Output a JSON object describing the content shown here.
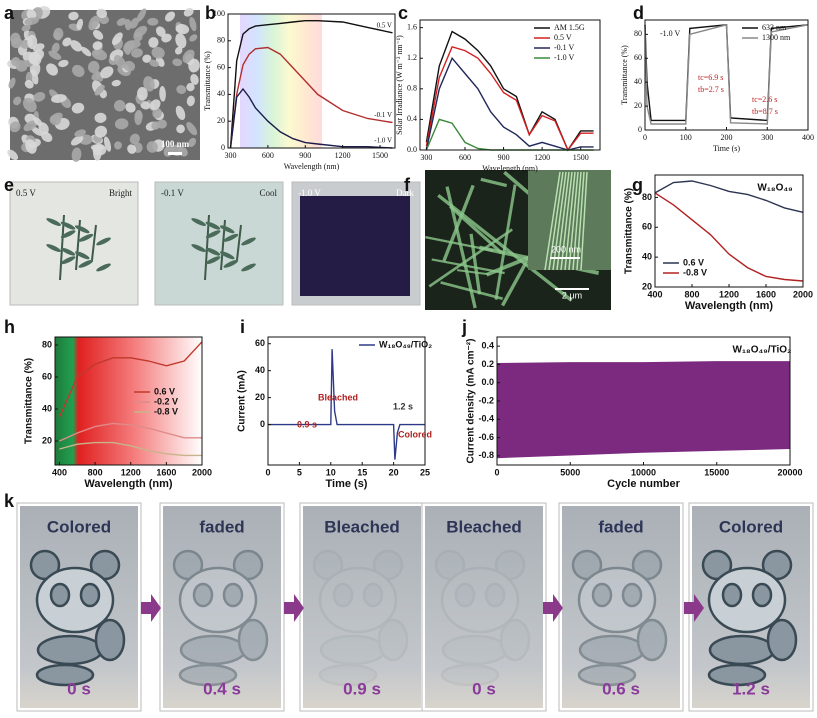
{
  "chart_data": [
    {
      "type": "line",
      "panel": "b",
      "xlabel": "Wavelength (nm)",
      "ylabel": "Transmittance (%)",
      "x": [
        300,
        350,
        400,
        450,
        500,
        600,
        700,
        800,
        900,
        1000,
        1200,
        1400,
        1600
      ],
      "series": [
        {
          "name": "0.5 V",
          "color": "#111111",
          "values": [
            0,
            65,
            85,
            89,
            91,
            92,
            93,
            94,
            95,
            95,
            94,
            90,
            86
          ]
        },
        {
          "name": "-0.1 V",
          "color": "#b03030",
          "values": [
            0,
            40,
            62,
            70,
            74,
            75,
            70,
            60,
            50,
            40,
            28,
            22,
            19
          ]
        },
        {
          "name": "-1.0 V",
          "color": "#1c1c4a",
          "values": [
            0,
            38,
            44,
            38,
            30,
            20,
            12,
            7,
            4,
            3,
            1,
            1,
            0
          ]
        }
      ],
      "xlim": [
        280,
        1620
      ],
      "ylim": [
        0,
        100
      ],
      "xticks": [
        300,
        600,
        900,
        1200,
        1500
      ],
      "yticks": [
        0,
        20,
        40,
        60,
        80,
        100
      ],
      "legend": "inline"
    },
    {
      "type": "line",
      "panel": "c",
      "xlabel": "Wavelength (nm)",
      "ylabel": "Solar Irradiance (W m⁻² nm⁻¹)",
      "x": [
        300,
        400,
        500,
        600,
        700,
        800,
        900,
        1000,
        1100,
        1200,
        1300,
        1400,
        1500,
        1600
      ],
      "series": [
        {
          "name": "AM 1.5G",
          "color": "#111111",
          "values": [
            0.1,
            1.1,
            1.55,
            1.45,
            1.3,
            1.1,
            0.8,
            0.7,
            0.2,
            0.5,
            0.4,
            0.0,
            0.25,
            0.25
          ]
        },
        {
          "name": "0.5 V",
          "color": "#d42020",
          "values": [
            0.05,
            0.95,
            1.35,
            1.3,
            1.2,
            1.0,
            0.75,
            0.65,
            0.2,
            0.45,
            0.38,
            0.0,
            0.22,
            0.22
          ]
        },
        {
          "name": "-0.1 V",
          "color": "#22285a",
          "values": [
            0,
            0.8,
            1.2,
            1.0,
            0.8,
            0.5,
            0.3,
            0.2,
            0.05,
            0.1,
            0.05,
            0,
            0.04,
            0.04
          ]
        },
        {
          "name": "-1.0 V",
          "color": "#3a8a3a",
          "values": [
            0,
            0.4,
            0.35,
            0.1,
            0.02,
            0,
            0,
            0,
            0,
            0,
            0,
            0,
            0,
            0
          ]
        }
      ],
      "xlim": [
        250,
        1650
      ],
      "ylim": [
        0,
        1.7
      ],
      "xticks": [
        300,
        600,
        900,
        1200,
        1500
      ],
      "yticks": [
        {
          "value": 0,
          "label": "0.0"
        },
        0.4,
        0.8,
        1.2,
        1.6
      ],
      "legend": "upper right"
    },
    {
      "type": "line",
      "panel": "d",
      "xlabel": "Time (s)",
      "ylabel": "Transmittance (%)",
      "x": [
        0,
        5,
        15,
        100,
        110,
        200,
        210,
        300,
        310,
        400
      ],
      "series": [
        {
          "name": "633 nm",
          "color": "#111111",
          "values": [
            88,
            40,
            8,
            8,
            85,
            88,
            10,
            8,
            85,
            88
          ]
        },
        {
          "name": "1300 nm",
          "color": "#888888",
          "values": [
            88,
            20,
            5,
            5,
            80,
            88,
            6,
            5,
            82,
            88
          ]
        }
      ],
      "xlim": [
        0,
        400
      ],
      "ylim": [
        0,
        92
      ],
      "xticks": [
        0,
        100,
        200,
        300,
        400
      ],
      "yticks": [
        0,
        20,
        40,
        60,
        80
      ],
      "legend": "upper right",
      "annotations": [
        "-1.0 V",
        "tc=6.9 s",
        "tb=2.7 s",
        "tc=2.6 s",
        "tb=8.7 s"
      ]
    },
    {
      "type": "line",
      "panel": "g",
      "title": "W₁₈O₄₉",
      "xlabel": "Wavelength (nm)",
      "ylabel": "Transmittance (%)",
      "x": [
        400,
        600,
        800,
        1000,
        1200,
        1400,
        1600,
        1800,
        2000
      ],
      "series": [
        {
          "name": "0.6 V",
          "color": "#2c3550",
          "values": [
            83,
            90,
            91,
            88,
            84,
            82,
            78,
            73,
            70
          ]
        },
        {
          "name": "-0.8 V",
          "color": "#b22222",
          "values": [
            83,
            75,
            65,
            55,
            42,
            33,
            27,
            25,
            24
          ]
        }
      ],
      "xlim": [
        400,
        2000
      ],
      "ylim": [
        20,
        95
      ],
      "xticks": [
        400,
        800,
        1200,
        1600,
        2000
      ],
      "yticks": [
        20,
        40,
        60,
        80
      ],
      "legend": "lower left"
    },
    {
      "type": "line",
      "panel": "h",
      "xlabel": "Wavelength (nm)",
      "ylabel": "Transmittance (%)",
      "x": [
        400,
        600,
        800,
        1000,
        1200,
        1400,
        1600,
        1800,
        2000
      ],
      "series": [
        {
          "name": "0.6 V",
          "color": "#c0392b",
          "values": [
            35,
            60,
            68,
            72,
            72,
            70,
            67,
            70,
            82
          ]
        },
        {
          "name": "-0.2 V",
          "color": "#e08a8a",
          "values": [
            20,
            25,
            29,
            31,
            30,
            28,
            25,
            22,
            22
          ]
        },
        {
          "name": "-0.8 V",
          "color": "#c8b48a",
          "values": [
            15,
            18,
            19,
            19,
            17,
            14,
            12,
            11,
            11
          ]
        }
      ],
      "xlim": [
        350,
        2000
      ],
      "ylim": [
        5,
        85
      ],
      "xticks": [
        400,
        800,
        1200,
        1600,
        2000
      ],
      "yticks": [
        20,
        40,
        60,
        80
      ],
      "legend": "center right"
    },
    {
      "type": "line",
      "panel": "i",
      "xlabel": "Time (s)",
      "ylabel": "Current (mA)",
      "x": [
        0,
        10,
        10.2,
        10.6,
        11,
        19.9,
        20,
        20.2,
        20.6,
        21,
        25
      ],
      "series": [
        {
          "name": "W₁₈O₄₉/TiO₂",
          "color": "#2e3a87",
          "values": [
            0,
            0,
            56,
            10,
            0,
            0,
            0,
            -26,
            -6,
            0,
            0
          ]
        }
      ],
      "xlim": [
        0,
        25
      ],
      "ylim": [
        -30,
        65
      ],
      "xticks": [
        0,
        5,
        10,
        15,
        20,
        25
      ],
      "yticks": [
        0,
        20,
        40,
        60
      ],
      "legend": "upper right",
      "annotations": [
        "Bleached",
        "0.9 s",
        "1.2 s",
        "Colored"
      ]
    },
    {
      "type": "band",
      "panel": "j",
      "title": "W₁₈O₄₉/TiO₂",
      "xlabel": "Cycle number",
      "ylabel": "Current density (mA cm⁻²)",
      "x": [
        0,
        5000,
        10000,
        15000,
        20000
      ],
      "series": [
        {
          "color": "#7b2a7f",
          "values": [
            0.21,
            0.22,
            0.22,
            0.23,
            0.23
          ]
        },
        {
          "color": "#7b2a7f",
          "values": [
            -0.82,
            -0.79,
            -0.76,
            -0.74,
            -0.72
          ]
        }
      ],
      "xlim": [
        0,
        20000
      ],
      "ylim": [
        -0.9,
        0.5
      ],
      "xticks": [
        0,
        5000,
        10000,
        15000,
        20000
      ],
      "yticks": [
        0.4,
        0.2,
        {
          "value": 0,
          "label": "0.0"
        },
        -0.2,
        -0.4,
        -0.6,
        -0.8
      ]
    }
  ],
  "images": {
    "a": {
      "panel": "a",
      "scale_bar": "100 nm"
    },
    "e": {
      "panel": "e",
      "photos": [
        {
          "voltage": "0.5 V",
          "state": "Bright"
        },
        {
          "voltage": "-0.1 V",
          "state": "Cool"
        },
        {
          "voltage": "-1.0 V",
          "state": "Dark"
        }
      ]
    },
    "f": {
      "panel": "f",
      "scale_bars": [
        "200 nm",
        "2 μm"
      ]
    },
    "k": {
      "panel": "k",
      "frames": [
        {
          "state": "Colored",
          "time": "0 s"
        },
        {
          "state": "faded",
          "time": "0.4 s"
        },
        {
          "state": "Bleached",
          "time": "0.9 s"
        },
        {
          "state": "Bleached",
          "time": "0 s"
        },
        {
          "state": "faded",
          "time": "0.6 s"
        },
        {
          "state": "Colored",
          "time": "1.2 s"
        }
      ]
    }
  }
}
